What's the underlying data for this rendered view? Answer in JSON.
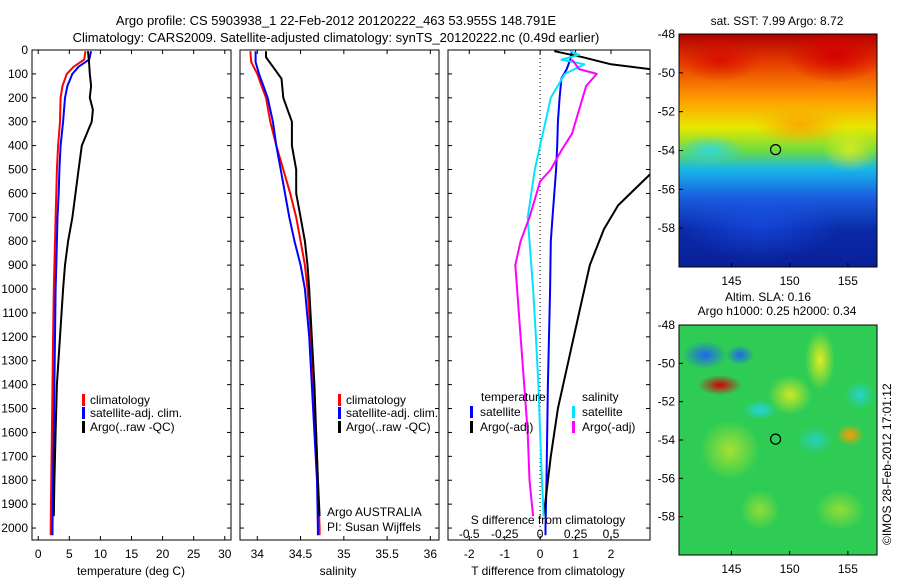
{
  "title_line1": "Argo profile: CS 5903938_1 22-Feb-2012 20120222_463 53.955S 148.791E",
  "title_line2": "Climatology: CARS2009. Satellite-adjusted climatology: synTS_20120222.nc (0.49d earlier)",
  "credit": "©IMOS 28-Feb-2012 17:01:12",
  "colors": {
    "climatology": "#ff0000",
    "satellite": "#0000ff",
    "argo": "#000000",
    "s_satellite": "#00e5ff",
    "s_argo": "#ff00ff"
  },
  "chart_data": [
    {
      "id": "temperature",
      "type": "line",
      "xlabel": "temperature (deg C)",
      "xlim": [
        -1,
        31
      ],
      "xticks": [
        0,
        5,
        10,
        15,
        20,
        25,
        30
      ],
      "ylim": [
        0,
        2050
      ],
      "yticks": [
        0,
        100,
        200,
        300,
        400,
        500,
        600,
        700,
        800,
        900,
        1000,
        1100,
        1200,
        1300,
        1400,
        1500,
        1600,
        1700,
        1800,
        1900,
        2000
      ],
      "y_reversed": true,
      "legend": [
        "climatology",
        "satellite-adj. clim.",
        "Argo(..raw -QC)"
      ],
      "series": [
        {
          "name": "climatology",
          "color": "#ff0000",
          "points": [
            [
              7.6,
              5
            ],
            [
              7.4,
              40
            ],
            [
              5.7,
              70
            ],
            [
              4.6,
              100
            ],
            [
              3.9,
              150
            ],
            [
              3.6,
              200
            ],
            [
              3.5,
              300
            ],
            [
              3.2,
              400
            ],
            [
              3.0,
              500
            ],
            [
              2.9,
              600
            ],
            [
              2.8,
              700
            ],
            [
              2.7,
              800
            ],
            [
              2.6,
              900
            ],
            [
              2.5,
              1000
            ],
            [
              2.4,
              1200
            ],
            [
              2.3,
              1400
            ],
            [
              2.2,
              1600
            ],
            [
              2.1,
              1800
            ],
            [
              2.0,
              2000
            ],
            [
              2.0,
              2030
            ]
          ]
        },
        {
          "name": "satellite-adj. clim.",
          "color": "#0000ff",
          "points": [
            [
              8.5,
              5
            ],
            [
              8.2,
              40
            ],
            [
              6.5,
              70
            ],
            [
              5.5,
              100
            ],
            [
              4.7,
              150
            ],
            [
              4.3,
              200
            ],
            [
              4.0,
              300
            ],
            [
              3.6,
              400
            ],
            [
              3.4,
              500
            ],
            [
              3.3,
              600
            ],
            [
              3.1,
              700
            ],
            [
              3.0,
              800
            ],
            [
              2.9,
              900
            ],
            [
              2.8,
              1000
            ],
            [
              2.7,
              1200
            ],
            [
              2.6,
              1400
            ],
            [
              2.5,
              1600
            ],
            [
              2.4,
              1800
            ],
            [
              2.3,
              2000
            ],
            [
              2.3,
              2030
            ]
          ]
        },
        {
          "name": "Argo(..raw -QC)",
          "color": "#000000",
          "points": [
            [
              8.0,
              5
            ],
            [
              8.2,
              60
            ],
            [
              8.3,
              100
            ],
            [
              8.5,
              150
            ],
            [
              8.3,
              200
            ],
            [
              8.8,
              250
            ],
            [
              8.6,
              300
            ],
            [
              7.0,
              400
            ],
            [
              6.5,
              500
            ],
            [
              6.0,
              600
            ],
            [
              5.5,
              700
            ],
            [
              4.8,
              800
            ],
            [
              4.3,
              900
            ],
            [
              4.0,
              1000
            ],
            [
              3.5,
              1200
            ],
            [
              3.0,
              1400
            ],
            [
              2.8,
              1600
            ],
            [
              2.6,
              1800
            ],
            [
              2.5,
              1950
            ]
          ]
        }
      ]
    },
    {
      "id": "salinity",
      "type": "line",
      "xlabel": "salinity",
      "xlim": [
        33.8,
        36.1
      ],
      "xticks": [
        34,
        34.5,
        35,
        35.5,
        36
      ],
      "ylim": [
        0,
        2050
      ],
      "y_reversed": true,
      "legend": [
        "climatology",
        "satellite-adj. clim.",
        "Argo(..raw -QC)"
      ],
      "annotation": [
        "Argo AUSTRALIA",
        "PI: Susan Wijffels"
      ],
      "series": [
        {
          "name": "climatology",
          "color": "#ff0000",
          "points": [
            [
              33.92,
              5
            ],
            [
              33.93,
              50
            ],
            [
              34.0,
              100
            ],
            [
              34.05,
              150
            ],
            [
              34.1,
              200
            ],
            [
              34.15,
              300
            ],
            [
              34.22,
              400
            ],
            [
              34.3,
              500
            ],
            [
              34.38,
              600
            ],
            [
              34.45,
              700
            ],
            [
              34.5,
              800
            ],
            [
              34.55,
              900
            ],
            [
              34.58,
              1000
            ],
            [
              34.62,
              1200
            ],
            [
              34.65,
              1400
            ],
            [
              34.68,
              1600
            ],
            [
              34.7,
              1800
            ],
            [
              34.72,
              2000
            ],
            [
              34.72,
              2030
            ]
          ]
        },
        {
          "name": "satellite-adj. clim.",
          "color": "#0000ff",
          "points": [
            [
              33.98,
              5
            ],
            [
              33.98,
              50
            ],
            [
              34.02,
              100
            ],
            [
              34.07,
              150
            ],
            [
              34.12,
              200
            ],
            [
              34.18,
              300
            ],
            [
              34.22,
              400
            ],
            [
              34.27,
              500
            ],
            [
              34.32,
              600
            ],
            [
              34.37,
              700
            ],
            [
              34.43,
              800
            ],
            [
              34.5,
              900
            ],
            [
              34.55,
              1000
            ],
            [
              34.6,
              1200
            ],
            [
              34.63,
              1400
            ],
            [
              34.66,
              1600
            ],
            [
              34.69,
              1800
            ],
            [
              34.7,
              2000
            ],
            [
              34.7,
              2030
            ]
          ]
        },
        {
          "name": "Argo(..raw -QC)",
          "color": "#000000",
          "points": [
            [
              34.1,
              5
            ],
            [
              34.1,
              30
            ],
            [
              34.2,
              80
            ],
            [
              34.28,
              120
            ],
            [
              34.3,
              200
            ],
            [
              34.35,
              250
            ],
            [
              34.4,
              300
            ],
            [
              34.4,
              400
            ],
            [
              34.45,
              500
            ],
            [
              34.45,
              600
            ],
            [
              34.5,
              700
            ],
            [
              34.55,
              800
            ],
            [
              34.58,
              900
            ],
            [
              34.6,
              1000
            ],
            [
              34.63,
              1200
            ],
            [
              34.66,
              1400
            ],
            [
              34.68,
              1600
            ],
            [
              34.7,
              1800
            ],
            [
              34.72,
              1950
            ]
          ]
        }
      ]
    },
    {
      "id": "difference",
      "type": "line",
      "xlabel": "T difference from climatology",
      "xlim": [
        -2.6,
        3.1
      ],
      "xticks": [
        -2,
        -1,
        0,
        1,
        2
      ],
      "x2label": "S difference from climatology",
      "x2ticks": [
        -0.5,
        -0.25,
        0,
        0.25,
        0.5
      ],
      "x2tick_labels": [
        "-0.5",
        "-0.25",
        "0",
        "0.25",
        "0.5"
      ],
      "ylim": [
        0,
        2050
      ],
      "y_reversed": true,
      "legend_temperature_title": "temperature",
      "legend_salinity_title": "salinity",
      "legend": [
        {
          "key": "t_sat",
          "label": "satellite",
          "color": "#0000ff"
        },
        {
          "key": "t_argo",
          "label": "Argo(-adj)",
          "color": "#000000"
        },
        {
          "key": "s_sat",
          "label": "satellite",
          "color": "#00e5ff"
        },
        {
          "key": "s_argo",
          "label": "Argo(-adj)",
          "color": "#ff00ff"
        }
      ],
      "series": [
        {
          "name": "T satellite",
          "color": "#0000ff",
          "points": [
            [
              0.9,
              5
            ],
            [
              0.85,
              40
            ],
            [
              0.75,
              80
            ],
            [
              0.6,
              120
            ],
            [
              0.55,
              200
            ],
            [
              0.5,
              300
            ],
            [
              0.48,
              400
            ],
            [
              0.45,
              500
            ],
            [
              0.4,
              600
            ],
            [
              0.35,
              700
            ],
            [
              0.3,
              800
            ],
            [
              0.28,
              1000
            ],
            [
              0.25,
              1200
            ],
            [
              0.22,
              1400
            ],
            [
              0.2,
              1600
            ],
            [
              0.18,
              1800
            ],
            [
              0.15,
              2000
            ],
            [
              0.15,
              2030
            ]
          ]
        },
        {
          "name": "T Argo(-adj)",
          "color": "#000000",
          "points": [
            [
              0.4,
              5
            ],
            [
              1.2,
              30
            ],
            [
              2.0,
              60
            ],
            [
              3.1,
              80
            ]
          ]
        },
        {
          "name": "T Argo(-adj) deep",
          "color": "#000000",
          "points": [
            [
              3.1,
              520
            ],
            [
              2.2,
              650
            ],
            [
              1.8,
              750
            ],
            [
              1.4,
              900
            ],
            [
              1.1,
              1100
            ],
            [
              0.8,
              1300
            ],
            [
              0.5,
              1500
            ],
            [
              0.3,
              1700
            ],
            [
              0.1,
              1950
            ]
          ]
        },
        {
          "name": "S satellite",
          "color": "#00e5ff",
          "points": [
            [
              0.85,
              5
            ],
            [
              1.1,
              20
            ],
            [
              0.6,
              40
            ],
            [
              1.25,
              60
            ],
            [
              0.7,
              100
            ],
            [
              0.3,
              200
            ],
            [
              0.15,
              300
            ],
            [
              0.0,
              400
            ],
            [
              -0.15,
              500
            ],
            [
              -0.25,
              600
            ],
            [
              -0.35,
              700
            ],
            [
              -0.3,
              800
            ],
            [
              -0.2,
              1000
            ],
            [
              -0.12,
              1200
            ],
            [
              -0.05,
              1400
            ],
            [
              0.0,
              1600
            ],
            [
              0.05,
              1800
            ],
            [
              0.1,
              1950
            ]
          ]
        },
        {
          "name": "S Argo(-adj)",
          "color": "#ff00ff",
          "points": [
            [
              0.9,
              40
            ],
            [
              1.1,
              80
            ],
            [
              1.6,
              100
            ],
            [
              1.3,
              150
            ],
            [
              1.1,
              250
            ],
            [
              0.9,
              350
            ],
            [
              0.6,
              420
            ],
            [
              0.3,
              500
            ],
            [
              0.0,
              550
            ],
            [
              -0.3,
              700
            ],
            [
              -0.55,
              800
            ],
            [
              -0.7,
              900
            ],
            [
              -0.65,
              1000
            ],
            [
              -0.55,
              1200
            ],
            [
              -0.45,
              1400
            ],
            [
              -0.35,
              1600
            ],
            [
              -0.3,
              1800
            ],
            [
              -0.2,
              1950
            ]
          ]
        }
      ]
    },
    {
      "id": "sst_map",
      "type": "heatmap",
      "title": "sat. SST: 7.99 Argo: 8.72",
      "xlim": [
        140.5,
        157.5
      ],
      "xticks": [
        145,
        150,
        155
      ],
      "ylim": [
        -60,
        -48
      ],
      "yticks": [
        -48,
        -50,
        -52,
        -54,
        -56,
        -58
      ],
      "marker": {
        "lon": 148.791,
        "lat": -53.955
      }
    },
    {
      "id": "sla_map",
      "type": "heatmap",
      "title_line1": "Altim. SLA: 0.16",
      "title_line2": "Argo h1000: 0.25 h2000: 0.34",
      "xlim": [
        140.5,
        157.5
      ],
      "xticks": [
        145,
        150,
        155
      ],
      "ylim": [
        -60,
        -48
      ],
      "yticks": [
        -48,
        -50,
        -52,
        -54,
        -56,
        -58
      ],
      "marker": {
        "lon": 148.791,
        "lat": -53.955
      }
    }
  ]
}
